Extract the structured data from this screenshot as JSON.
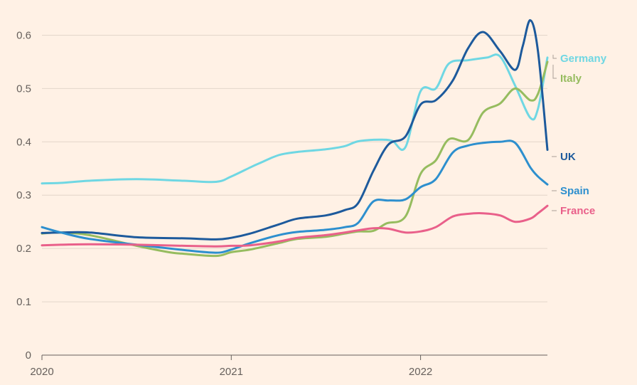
{
  "chart_data": {
    "type": "line",
    "title": "",
    "xlabel": "",
    "ylabel": "",
    "xlim": [
      2020.0,
      2022.67
    ],
    "ylim": [
      0,
      0.65
    ],
    "yticks": [
      0,
      0.1,
      0.2,
      0.3,
      0.4,
      0.5,
      0.6
    ],
    "ytick_labels": [
      "0",
      "0.1",
      "0.2",
      "0.3",
      "0.4",
      "0.5",
      "0.6"
    ],
    "xticks": [
      2020,
      2021,
      2022
    ],
    "xtick_labels": [
      "2020",
      "2021",
      "2022"
    ],
    "grid": "horizontal",
    "legend": "direct labels at right end of lines",
    "series": [
      {
        "name": "Germany",
        "color": "#6FD7E3",
        "points": [
          [
            2020.0,
            0.322
          ],
          [
            2020.1,
            0.323
          ],
          [
            2020.25,
            0.327
          ],
          [
            2020.5,
            0.33
          ],
          [
            2020.75,
            0.327
          ],
          [
            2020.92,
            0.325
          ],
          [
            2021.0,
            0.335
          ],
          [
            2021.1,
            0.352
          ],
          [
            2021.15,
            0.36
          ],
          [
            2021.25,
            0.375
          ],
          [
            2021.35,
            0.381
          ],
          [
            2021.5,
            0.386
          ],
          [
            2021.6,
            0.392
          ],
          [
            2021.67,
            0.401
          ],
          [
            2021.78,
            0.404
          ],
          [
            2021.85,
            0.402
          ],
          [
            2021.92,
            0.39
          ],
          [
            2022.0,
            0.495
          ],
          [
            2022.08,
            0.5
          ],
          [
            2022.15,
            0.547
          ],
          [
            2022.25,
            0.553
          ],
          [
            2022.35,
            0.558
          ],
          [
            2022.42,
            0.56
          ],
          [
            2022.5,
            0.505
          ],
          [
            2022.58,
            0.445
          ],
          [
            2022.62,
            0.462
          ],
          [
            2022.67,
            0.558
          ]
        ]
      },
      {
        "name": "Italy",
        "color": "#96BC5F",
        "points": [
          [
            2020.0,
            0.228
          ],
          [
            2020.1,
            0.23
          ],
          [
            2020.25,
            0.225
          ],
          [
            2020.5,
            0.205
          ],
          [
            2020.67,
            0.193
          ],
          [
            2020.75,
            0.19
          ],
          [
            2020.92,
            0.186
          ],
          [
            2021.0,
            0.193
          ],
          [
            2021.1,
            0.198
          ],
          [
            2021.25,
            0.21
          ],
          [
            2021.35,
            0.218
          ],
          [
            2021.5,
            0.222
          ],
          [
            2021.6,
            0.228
          ],
          [
            2021.67,
            0.232
          ],
          [
            2021.75,
            0.233
          ],
          [
            2021.82,
            0.247
          ],
          [
            2021.92,
            0.26
          ],
          [
            2022.0,
            0.34
          ],
          [
            2022.08,
            0.365
          ],
          [
            2022.15,
            0.405
          ],
          [
            2022.25,
            0.403
          ],
          [
            2022.33,
            0.455
          ],
          [
            2022.42,
            0.472
          ],
          [
            2022.5,
            0.5
          ],
          [
            2022.58,
            0.478
          ],
          [
            2022.62,
            0.49
          ],
          [
            2022.67,
            0.55
          ]
        ]
      },
      {
        "name": "UK",
        "color": "#1D5A9C",
        "points": [
          [
            2020.0,
            0.229
          ],
          [
            2020.1,
            0.23
          ],
          [
            2020.25,
            0.23
          ],
          [
            2020.5,
            0.221
          ],
          [
            2020.75,
            0.219
          ],
          [
            2020.92,
            0.217
          ],
          [
            2021.0,
            0.22
          ],
          [
            2021.1,
            0.228
          ],
          [
            2021.25,
            0.245
          ],
          [
            2021.35,
            0.256
          ],
          [
            2021.5,
            0.262
          ],
          [
            2021.6,
            0.272
          ],
          [
            2021.67,
            0.285
          ],
          [
            2021.75,
            0.345
          ],
          [
            2021.83,
            0.395
          ],
          [
            2021.92,
            0.41
          ],
          [
            2022.0,
            0.47
          ],
          [
            2022.08,
            0.478
          ],
          [
            2022.17,
            0.515
          ],
          [
            2022.25,
            0.575
          ],
          [
            2022.33,
            0.606
          ],
          [
            2022.42,
            0.57
          ],
          [
            2022.5,
            0.535
          ],
          [
            2022.54,
            0.58
          ],
          [
            2022.58,
            0.628
          ],
          [
            2022.62,
            0.57
          ],
          [
            2022.67,
            0.385
          ]
        ]
      },
      {
        "name": "Spain",
        "color": "#2D8FCE",
        "points": [
          [
            2020.0,
            0.24
          ],
          [
            2020.1,
            0.23
          ],
          [
            2020.25,
            0.218
          ],
          [
            2020.5,
            0.207
          ],
          [
            2020.75,
            0.197
          ],
          [
            2020.92,
            0.192
          ],
          [
            2021.0,
            0.198
          ],
          [
            2021.1,
            0.21
          ],
          [
            2021.25,
            0.225
          ],
          [
            2021.35,
            0.231
          ],
          [
            2021.5,
            0.235
          ],
          [
            2021.6,
            0.24
          ],
          [
            2021.67,
            0.248
          ],
          [
            2021.75,
            0.288
          ],
          [
            2021.83,
            0.29
          ],
          [
            2021.92,
            0.292
          ],
          [
            2022.0,
            0.315
          ],
          [
            2022.08,
            0.33
          ],
          [
            2022.17,
            0.38
          ],
          [
            2022.25,
            0.393
          ],
          [
            2022.33,
            0.398
          ],
          [
            2022.42,
            0.4
          ],
          [
            2022.5,
            0.398
          ],
          [
            2022.58,
            0.352
          ],
          [
            2022.62,
            0.335
          ],
          [
            2022.67,
            0.32
          ]
        ]
      },
      {
        "name": "France",
        "color": "#E9608A",
        "points": [
          [
            2020.0,
            0.206
          ],
          [
            2020.1,
            0.207
          ],
          [
            2020.25,
            0.208
          ],
          [
            2020.5,
            0.207
          ],
          [
            2020.75,
            0.205
          ],
          [
            2020.92,
            0.204
          ],
          [
            2021.0,
            0.205
          ],
          [
            2021.1,
            0.206
          ],
          [
            2021.25,
            0.213
          ],
          [
            2021.35,
            0.22
          ],
          [
            2021.5,
            0.225
          ],
          [
            2021.6,
            0.23
          ],
          [
            2021.67,
            0.234
          ],
          [
            2021.75,
            0.238
          ],
          [
            2021.83,
            0.237
          ],
          [
            2021.92,
            0.23
          ],
          [
            2022.0,
            0.232
          ],
          [
            2022.08,
            0.24
          ],
          [
            2022.17,
            0.26
          ],
          [
            2022.25,
            0.265
          ],
          [
            2022.33,
            0.266
          ],
          [
            2022.42,
            0.262
          ],
          [
            2022.5,
            0.25
          ],
          [
            2022.58,
            0.256
          ],
          [
            2022.62,
            0.266
          ],
          [
            2022.67,
            0.28
          ]
        ]
      }
    ],
    "end_labels": [
      {
        "name": "Germany",
        "color": "#6FD7E3"
      },
      {
        "name": "Italy",
        "color": "#96BC5F"
      },
      {
        "name": "UK",
        "color": "#1D5A9C"
      },
      {
        "name": "Spain",
        "color": "#2D8FCE"
      },
      {
        "name": "France",
        "color": "#E9608A"
      }
    ]
  }
}
